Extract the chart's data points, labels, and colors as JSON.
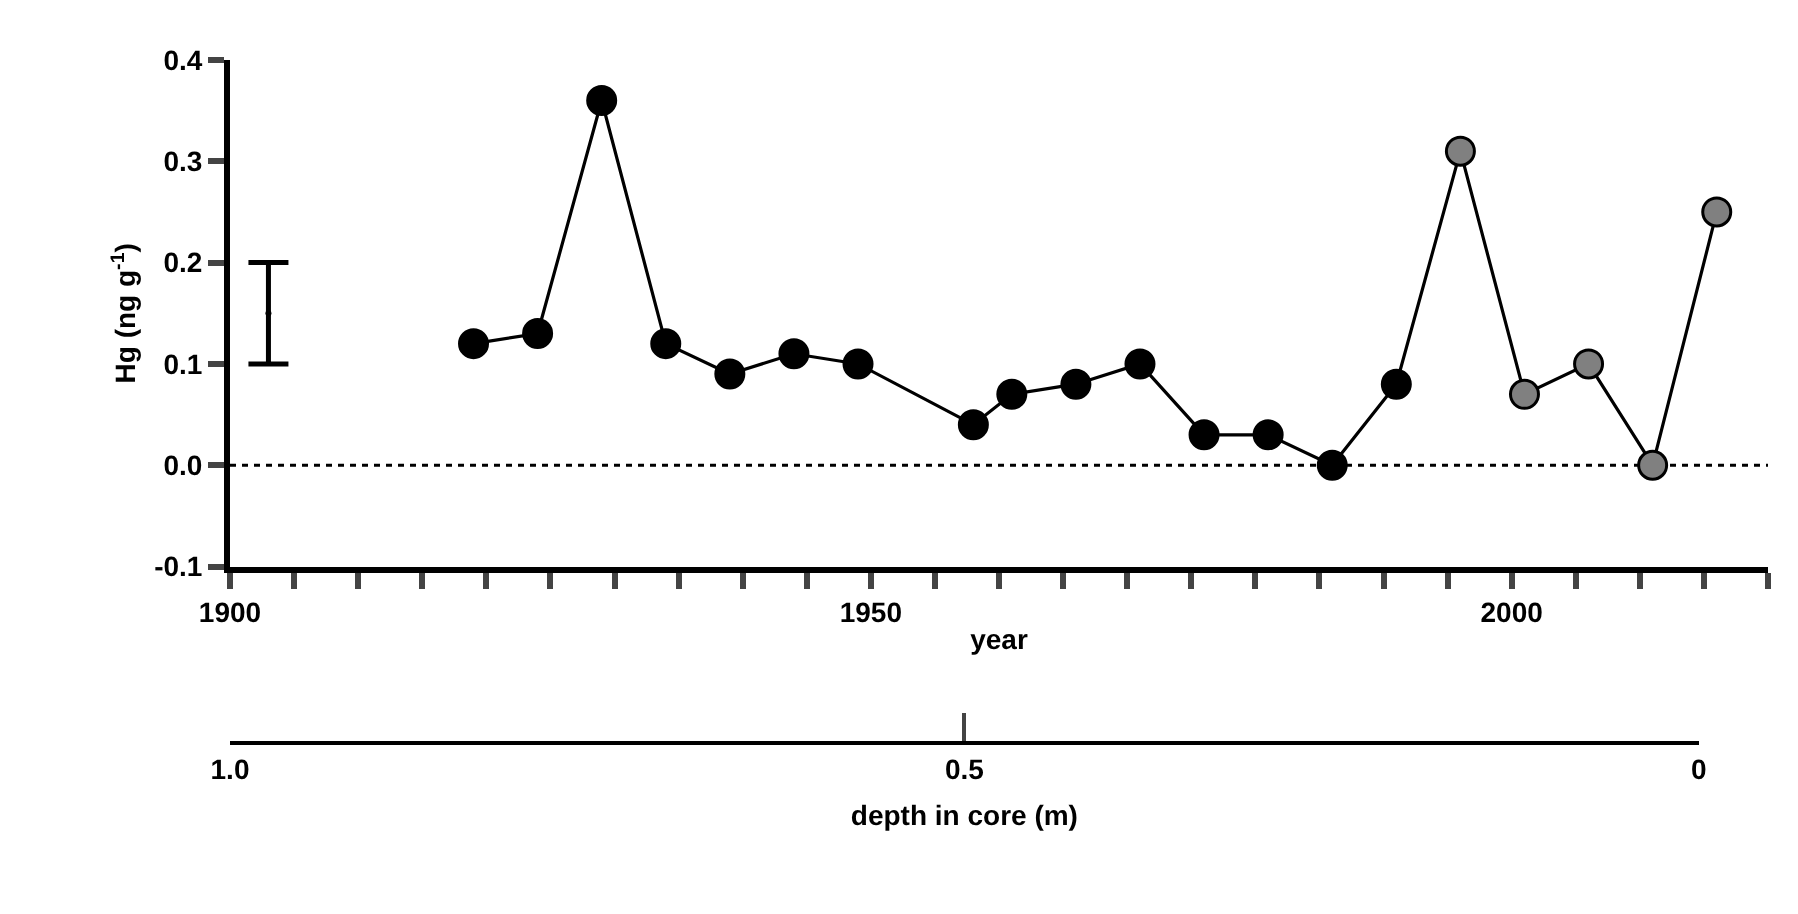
{
  "chart_data": {
    "type": "line",
    "xlabel": "year",
    "ylabel": "Hg (ng g$^{-1}$)",
    "x2label": "depth in core (m)",
    "xlim": [
      1900,
      2020
    ],
    "xticks": [
      1900,
      {
        "value": 1905,
        "label": null
      },
      {
        "value": 1910,
        "label": null
      },
      {
        "value": 1915,
        "label": null
      },
      {
        "value": 1920,
        "label": null
      },
      {
        "value": 1925,
        "label": null
      },
      {
        "value": 1930,
        "label": null
      },
      {
        "value": 1935,
        "label": null
      },
      {
        "value": 1940,
        "label": null
      },
      {
        "value": 1945,
        "label": null
      },
      1950,
      {
        "value": 1955,
        "label": null
      },
      {
        "value": 1960,
        "label": null
      },
      {
        "value": 1965,
        "label": null
      },
      {
        "value": 1970,
        "label": null
      },
      {
        "value": 1975,
        "label": null
      },
      {
        "value": 1980,
        "label": null
      },
      {
        "value": 1985,
        "label": null
      },
      {
        "value": 1990,
        "label": null
      },
      {
        "value": 1995,
        "label": null
      },
      2000,
      {
        "value": 2005,
        "label": null
      },
      {
        "value": 2010,
        "label": null
      },
      {
        "value": 2015,
        "label": null
      },
      {
        "value": 2020,
        "label": null
      }
    ],
    "ylim": [
      -0.1,
      0.4
    ],
    "yticks": [
      {
        "value": -0.1,
        "label": "-0.1"
      },
      {
        "value": 0,
        "label": "0.0"
      },
      0.1,
      0.2,
      0.3,
      0.4
    ],
    "x2lim": [
      1.0,
      0
    ],
    "x2ticks": [
      {
        "value": 1.0,
        "label": "1.0"
      },
      0.5,
      0
    ],
    "grid": false,
    "marker": "circle",
    "line_style": "solid",
    "ref_lines": [
      {
        "axis": "y",
        "value": 0,
        "label": null,
        "color": "#000000",
        "line_style": "dotted"
      }
    ],
    "series": [
      {
        "color": "#000000",
        "x": [
          1919,
          1924,
          1929,
          1934,
          1939,
          1944,
          1949,
          1958,
          1961,
          1966,
          1971,
          1976,
          1981,
          1986,
          1991,
          1996,
          2001,
          2006,
          2011,
          2016
        ],
        "values": [
          0.12,
          0.13,
          0.36,
          0.12,
          0.09,
          0.11,
          0.1,
          0.04,
          0.07,
          0.08,
          0.1,
          0.03,
          0.03,
          0.0,
          0.08,
          0.31,
          0.07,
          0.1,
          0.0,
          0.25
        ],
        "colors": [
          "#000000",
          "#000000",
          "#000000",
          "#000000",
          "#000000",
          "#000000",
          "#000000",
          "#000000",
          "#000000",
          "#000000",
          "#000000",
          "#000000",
          "#000000",
          "#000000",
          "#000000",
          "#808080",
          "#808080",
          "#808080",
          "#808080",
          "#808080"
        ]
      },
      {
        "type": "scatter",
        "color": "#000000",
        "marker": "none",
        "x": [
          1903
        ],
        "values": [
          0.15
        ],
        "errors": [
          0.05
        ]
      }
    ]
  }
}
